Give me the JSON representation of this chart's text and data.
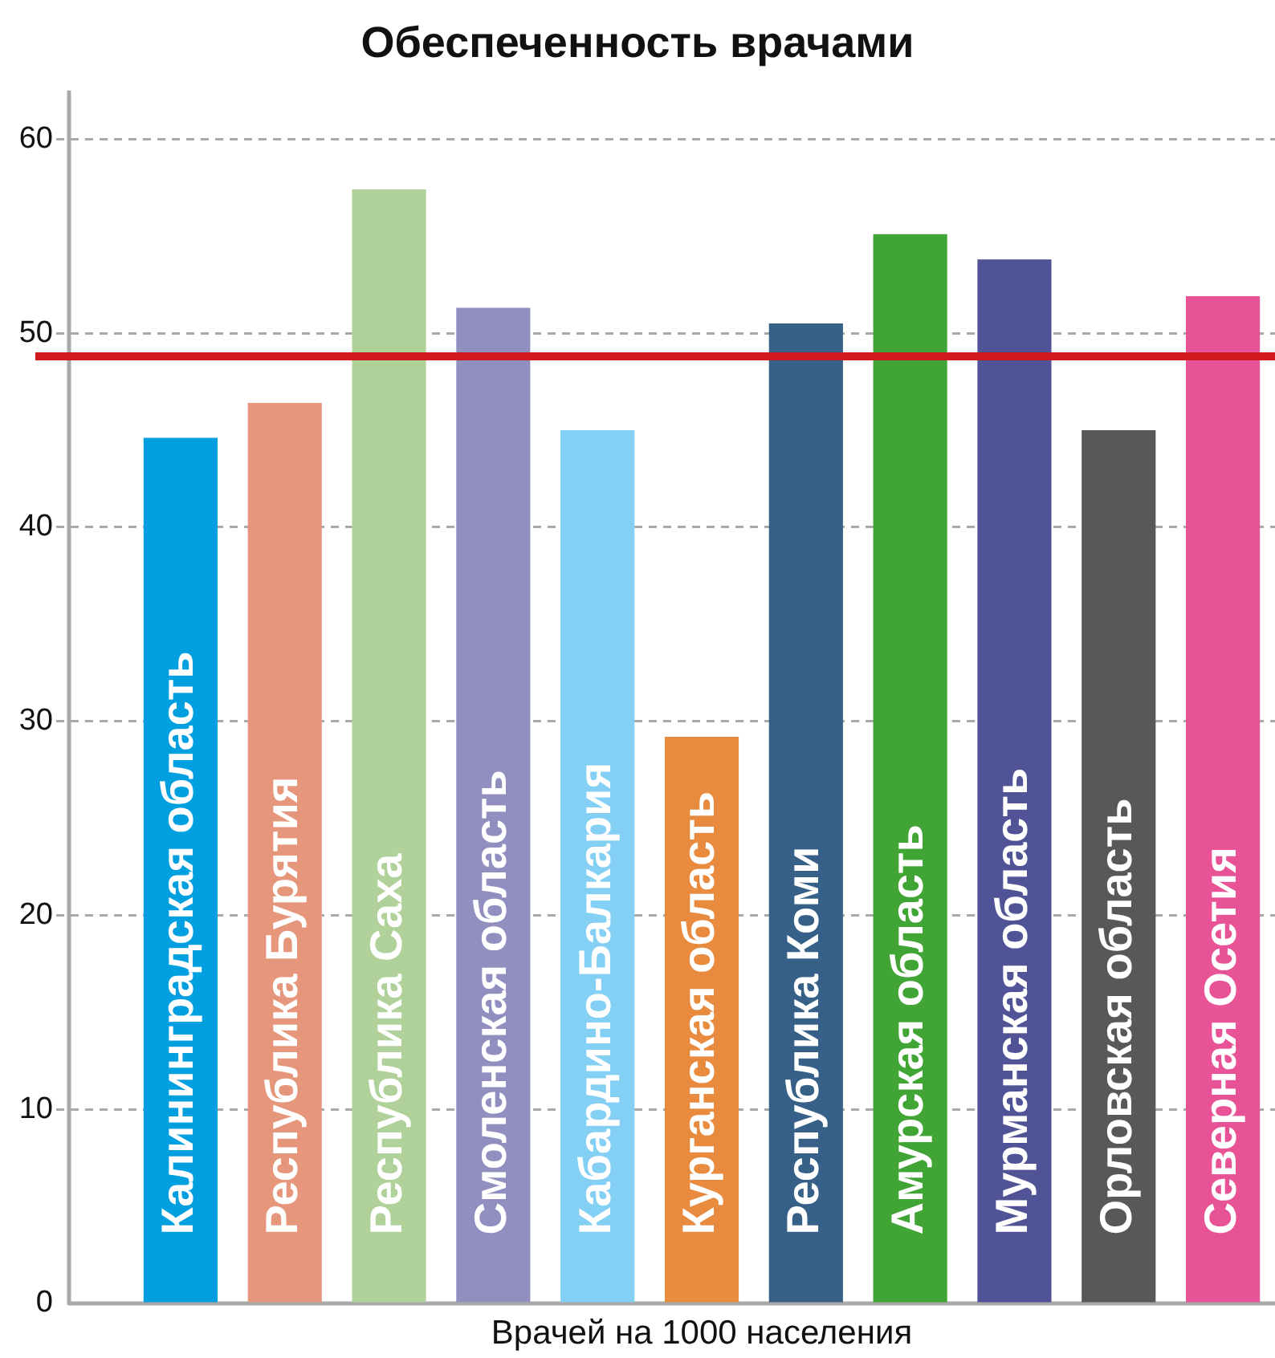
{
  "chart_data": {
    "type": "bar",
    "title": "Обеспеченность врачами",
    "xlabel": "Врачей на 1000 населения",
    "categories": [
      "Калининградская область",
      "Республика Бурятия",
      "Республика Саха",
      "Смоленская область",
      "Кабардино-Балкария",
      "Курганская область",
      "Республика Коми",
      "Амурская область",
      "Мурманская область",
      "Орловская область",
      "Северная Осетия"
    ],
    "values": [
      44.6,
      46.4,
      57.4,
      51.3,
      45.0,
      29.2,
      50.5,
      55.1,
      53.8,
      45.0,
      51.9
    ],
    "colors": [
      "#009fe0",
      "#e6977b",
      "#b1d19b",
      "#918fbf",
      "#84cff4",
      "#e88b3e",
      "#366087",
      "#41a535",
      "#505396",
      "#585856",
      "#e85296"
    ],
    "ylim": [
      0,
      62.5
    ],
    "yticks": [
      0,
      10,
      20,
      30,
      40,
      50,
      60
    ],
    "grid": "y",
    "ref_lines": [
      {
        "axis": "y",
        "value": 48.8,
        "color": "#d0181f"
      }
    ]
  }
}
